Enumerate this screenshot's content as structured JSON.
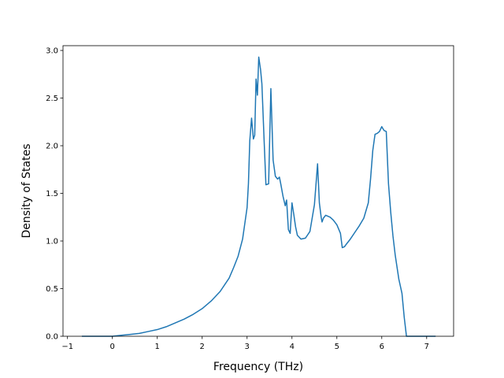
{
  "chart_data": {
    "type": "line",
    "title": "",
    "xlabel": "Frequency (THz)",
    "ylabel": "Density of States",
    "xlim": [
      -1.1,
      7.6
    ],
    "ylim": [
      0.0,
      3.05
    ],
    "x_ticks": [
      -1,
      0,
      1,
      2,
      3,
      4,
      5,
      6,
      7
    ],
    "x_tick_labels": [
      "−1",
      "0",
      "1",
      "2",
      "3",
      "4",
      "5",
      "6",
      "7"
    ],
    "y_ticks": [
      0.0,
      0.5,
      1.0,
      1.5,
      2.0,
      2.5,
      3.0
    ],
    "y_tick_labels": [
      "0.0",
      "0.5",
      "1.0",
      "1.5",
      "2.0",
      "2.5",
      "3.0"
    ],
    "grid": false,
    "legend": "none",
    "series": [
      {
        "color": "#1f77b4",
        "x": [
          -0.68,
          0.0,
          0.2,
          0.4,
          0.6,
          0.8,
          1.0,
          1.2,
          1.4,
          1.6,
          1.8,
          2.0,
          2.2,
          2.4,
          2.6,
          2.7,
          2.8,
          2.9,
          3.0,
          3.03,
          3.06,
          3.1,
          3.14,
          3.17,
          3.2,
          3.23,
          3.26,
          3.3,
          3.33,
          3.38,
          3.42,
          3.48,
          3.53,
          3.58,
          3.63,
          3.68,
          3.72,
          3.75,
          3.8,
          3.85,
          3.88,
          3.92,
          3.96,
          4.0,
          4.04,
          4.08,
          4.12,
          4.2,
          4.3,
          4.4,
          4.5,
          4.57,
          4.61,
          4.65,
          4.67,
          4.7,
          4.75,
          4.8,
          4.85,
          4.92,
          5.0,
          5.08,
          5.12,
          5.17,
          5.2,
          5.3,
          5.4,
          5.5,
          5.6,
          5.7,
          5.75,
          5.8,
          5.85,
          5.9,
          5.95,
          6.0,
          6.05,
          6.1,
          6.15,
          6.2,
          6.25,
          6.3,
          6.38,
          6.45,
          6.5,
          6.55,
          6.58,
          6.6,
          7.2
        ],
        "y": [
          0.0,
          0.0,
          0.01,
          0.02,
          0.03,
          0.05,
          0.07,
          0.1,
          0.14,
          0.18,
          0.23,
          0.29,
          0.37,
          0.47,
          0.61,
          0.72,
          0.84,
          1.02,
          1.35,
          1.6,
          2.05,
          2.29,
          2.07,
          2.11,
          2.7,
          2.53,
          2.93,
          2.8,
          2.65,
          2.05,
          1.59,
          1.6,
          2.6,
          1.85,
          1.68,
          1.65,
          1.67,
          1.6,
          1.47,
          1.37,
          1.43,
          1.12,
          1.08,
          1.4,
          1.28,
          1.15,
          1.06,
          1.02,
          1.03,
          1.1,
          1.38,
          1.81,
          1.4,
          1.25,
          1.2,
          1.24,
          1.27,
          1.26,
          1.25,
          1.22,
          1.17,
          1.08,
          0.93,
          0.94,
          0.96,
          1.02,
          1.09,
          1.16,
          1.24,
          1.4,
          1.65,
          1.95,
          2.12,
          2.13,
          2.15,
          2.2,
          2.16,
          2.15,
          1.6,
          1.3,
          1.05,
          0.85,
          0.6,
          0.45,
          0.2,
          0.0,
          0.0,
          0.0,
          0.0
        ]
      }
    ]
  }
}
